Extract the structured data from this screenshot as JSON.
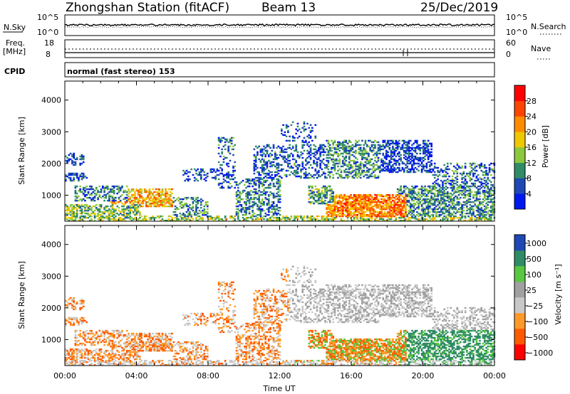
{
  "header": {
    "station": "Zhongshan Station (fitACF)",
    "beam": "Beam 13",
    "date": "25/Dec/2019"
  },
  "top_panel": {
    "nsky_label": "N.Sky",
    "nsearch_label": "N.Search",
    "left_ticks": [
      "10^5",
      "10^0"
    ],
    "right_ticks": [
      "10^5",
      "10^0"
    ]
  },
  "freq_panel": {
    "freq_label": "Freq.",
    "freq_unit": "[MHz]",
    "nave_label": "Nave",
    "left_ticks": [
      "18",
      "8"
    ],
    "right_ticks": [
      "60",
      "0"
    ]
  },
  "cpid": {
    "label": "CPID",
    "mode": "normal (fast stereo) 153"
  },
  "colors": {
    "power_scale": [
      "#0018f0",
      "#1f48b4",
      "#2f8c66",
      "#8cc83c",
      "#f0c800",
      "#ff8c00",
      "#ff4400",
      "#ff0000"
    ],
    "velocity_scale": [
      "#ff0000",
      "#ff5a00",
      "#ff9a28",
      "#c8c8c8",
      "#a0a0a0",
      "#58c840",
      "#2f8c66",
      "#1f48b4"
    ]
  },
  "chart_data": [
    {
      "type": "heatmap",
      "name": "power",
      "xlabel": "",
      "ylabel": "Slant Range [km]",
      "xlim": [
        0,
        24
      ],
      "ylim": [
        180,
        4600
      ],
      "x_ticks": [],
      "y_ticks": [
        "1000",
        "2000",
        "3000",
        "4000"
      ],
      "y_tick_values": [
        1000,
        2000,
        3000,
        4000
      ],
      "colorbar_label": "Power [dB]",
      "colorbar_ticks": [
        "4",
        "8",
        "12",
        "16",
        "20",
        "24",
        "28"
      ],
      "colorbar_range": [
        0,
        32
      ]
    },
    {
      "type": "heatmap",
      "name": "velocity",
      "xlabel": "Time UT",
      "ylabel": "Slant Range [km]",
      "xlim": [
        0,
        24
      ],
      "ylim": [
        180,
        4600
      ],
      "x_ticks": [
        "00:00",
        "04:00",
        "08:00",
        "12:00",
        "16:00",
        "20:00",
        "00:00"
      ],
      "x_tick_values": [
        0,
        4,
        8,
        12,
        16,
        20,
        24
      ],
      "y_ticks": [
        "1000",
        "2000",
        "3000",
        "4000"
      ],
      "y_tick_values": [
        1000,
        2000,
        3000,
        4000
      ],
      "colorbar_label": "Velocity [m s⁻¹]",
      "colorbar_ticks": [
        "1000",
        "500",
        "100",
        "25",
        "−25",
        "−100",
        "−500",
        "−1000"
      ]
    }
  ]
}
